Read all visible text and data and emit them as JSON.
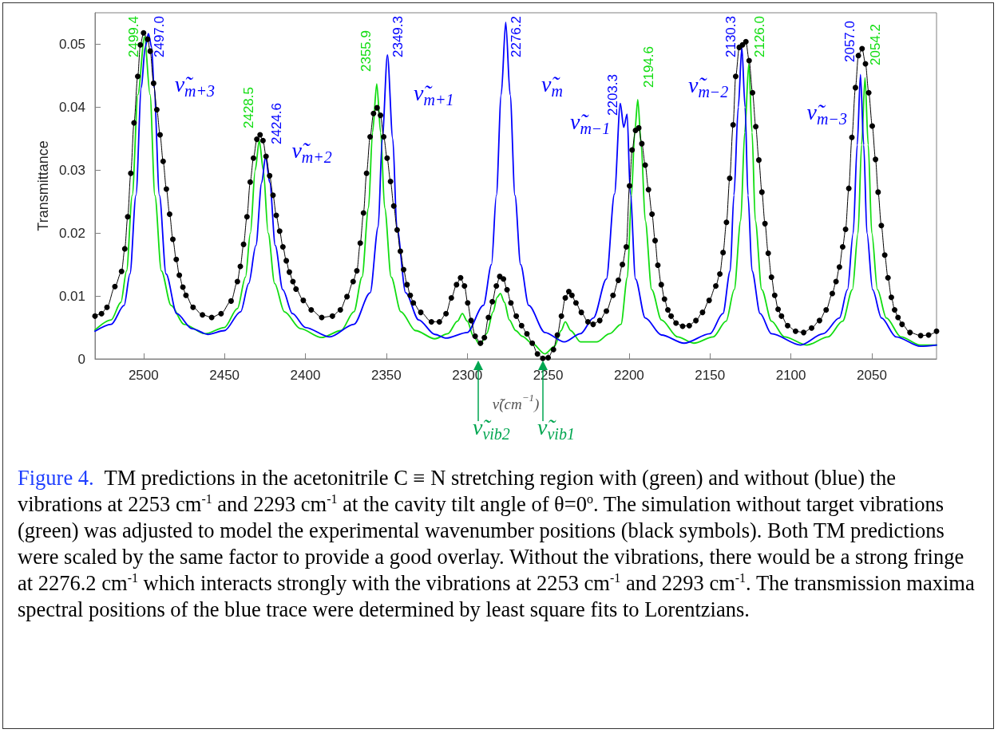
{
  "chart_data": {
    "type": "line",
    "title": "Figure 4.",
    "subtitle": "TM predictions in the acetonitrile C ≡ N stretching region with (green) and without (blue) the vibrations at 2253 cm$^{-1}$ and 2293 cm$^{-1}$ at the cavity tilt angle of θ=0$^{o}$.  The simulation without target vibrations (green) was adjusted to model the experimental wavenumber positions (black symbols).  Both TM predictions were scaled by the same factor to provide a good overlay.  Without the vibrations, there would be a strong fringe at 2276.2 cm$^{-1}$ which interacts strongly with the vibrations at 2253 cm$^{-1}$ and 2293 cm$^{-1}$.  The transmission maxima spectral positions of the blue trace were determined by least square fits to Lorentzians.",
    "xlabel": "ν̃(cm$^{−1}$)",
    "ylabel": "Transmittance",
    "xlim": [
      2530,
      2010
    ],
    "xticks": [
      2500,
      2450,
      2400,
      2350,
      2300,
      2250,
      2200,
      2150,
      2100,
      2050
    ],
    "ylim": [
      0,
      0.055
    ],
    "yticks": [
      0,
      0.01,
      0.02,
      0.03,
      0.04,
      0.05
    ],
    "series": [
      {
        "color": "#000000",
        "marker": "circle",
        "x": [
          2530,
          2526,
          2522.6,
          2517.7,
          2513.6,
          2511.6,
          2509.8,
          2507.9,
          2505.9,
          2503.6,
          2502,
          2500,
          2497.5,
          2495.9,
          2493.8,
          2491.8,
          2489.8,
          2487.9,
          2485.9,
          2483.9,
          2481.9,
          2479.8,
          2477.9,
          2475.7,
          2473.8,
          2469.4,
          2463.6,
          2457.9,
          2452.1,
          2445.9,
          2442,
          2440.2,
          2438.2,
          2436.1,
          2434.1,
          2432.1,
          2430,
          2428,
          2426.2,
          2424.3,
          2422.1,
          2420,
          2418,
          2415.9,
          2413.9,
          2411.8,
          2409.9,
          2407.7,
          2405.8,
          2401.3,
          2396.4,
          2389.9,
          2383.3,
          2378.4,
          2374.3,
          2370.5,
          2368.2,
          2366.1,
          2364.1,
          2362.2,
          2360,
          2357.9,
          2355.7,
          2353.6,
          2351.6,
          2349.5,
          2347.4,
          2345.4,
          2343.3,
          2341.3,
          2339.3,
          2337.2,
          2335.2,
          2333.3,
          2328.7,
          2322.1,
          2317.2,
          2313.1,
          2309.8,
          2306.6,
          2304.1,
          2301.7,
          2299.7,
          2297.6,
          2295.1,
          2291.8,
          2289.4,
          2286.9,
          2284.5,
          2282,
          2279.9,
          2277.6,
          2275.4,
          2273,
          2269.7,
          2266.4,
          2263.1,
          2259.8,
          2256.6,
          2253.3,
          2250,
          2246.7,
          2244.3,
          2241.8,
          2239.4,
          2237.2,
          2235.3,
          2232.8,
          2229.5,
          2225.4,
          2222.2,
          2218.1,
          2214,
          2209.9,
          2206.6,
          2204.1,
          2201.7,
          2199.7,
          2198.1,
          2196,
          2194,
          2192.1,
          2190,
          2188,
          2185.8,
          2183.9,
          2182.2,
          2180.1,
          2178.1,
          2176,
          2174,
          2171,
          2166.9,
          2162.8,
          2158.7,
          2154.6,
          2150.5,
          2146.4,
          2143.9,
          2141.9,
          2139.8,
          2137.8,
          2135.7,
          2134.1,
          2131.9,
          2129.9,
          2127.8,
          2125.8,
          2123.7,
          2121.7,
          2119.8,
          2117.9,
          2116,
          2114,
          2112,
          2110,
          2107.9,
          2105.8,
          2102,
          2097.1,
          2092.1,
          2087.2,
          2082.3,
          2078.2,
          2074.4,
          2072.1,
          2070,
          2068,
          2066.2,
          2064.2,
          2062.3,
          2060.1,
          2058.3,
          2056,
          2053.9,
          2051.9,
          2049.7,
          2047.7,
          2046.1,
          2044.1,
          2042,
          2040,
          2037.9,
          2035.9,
          2033.8,
          2031.3,
          2026.4,
          2019.8,
          2014.9,
          2010
        ],
        "values": [
          0.0068,
          0.0072,
          0.0082,
          0.0115,
          0.0139,
          0.0175,
          0.0226,
          0.0295,
          0.0375,
          0.0449,
          0.0499,
          0.0518,
          0.0508,
          0.0489,
          0.0438,
          0.0396,
          0.0356,
          0.0314,
          0.027,
          0.023,
          0.019,
          0.0158,
          0.0133,
          0.0114,
          0.0101,
          0.0082,
          0.007,
          0.0066,
          0.0072,
          0.0092,
          0.0123,
          0.0147,
          0.0182,
          0.0226,
          0.0281,
          0.0319,
          0.0349,
          0.0356,
          0.0347,
          0.0322,
          0.0291,
          0.026,
          0.0228,
          0.0203,
          0.0178,
          0.0156,
          0.0138,
          0.0123,
          0.0111,
          0.0093,
          0.0078,
          0.0066,
          0.0068,
          0.0078,
          0.0099,
          0.0123,
          0.014,
          0.0184,
          0.0232,
          0.0295,
          0.0353,
          0.039,
          0.0399,
          0.0387,
          0.0353,
          0.0319,
          0.0282,
          0.0243,
          0.0205,
          0.0171,
          0.0142,
          0.0118,
          0.0101,
          0.0089,
          0.0074,
          0.0059,
          0.0059,
          0.0072,
          0.0097,
          0.0118,
          0.0129,
          0.0116,
          0.0089,
          0.0061,
          0.0036,
          0.0025,
          0.0034,
          0.0066,
          0.0091,
          0.0116,
          0.0131,
          0.0127,
          0.011,
          0.0089,
          0.0068,
          0.0053,
          0.004,
          0.0025,
          0.0008,
          0.0001,
          0.0002,
          0.0015,
          0.0038,
          0.0068,
          0.0097,
          0.0107,
          0.0101,
          0.0089,
          0.0074,
          0.0059,
          0.0055,
          0.0061,
          0.0076,
          0.0101,
          0.0125,
          0.015,
          0.0178,
          0.0275,
          0.0332,
          0.0363,
          0.0367,
          0.0342,
          0.0308,
          0.0269,
          0.023,
          0.0188,
          0.0149,
          0.0118,
          0.0095,
          0.0078,
          0.0068,
          0.0057,
          0.0052,
          0.0053,
          0.0061,
          0.0074,
          0.0093,
          0.0116,
          0.0135,
          0.0169,
          0.0217,
          0.0287,
          0.0372,
          0.0449,
          0.0495,
          0.0499,
          0.0504,
          0.0474,
          0.0423,
          0.0369,
          0.0316,
          0.0265,
          0.0215,
          0.0168,
          0.013,
          0.0101,
          0.0079,
          0.0068,
          0.0053,
          0.0044,
          0.0042,
          0.0049,
          0.0061,
          0.0078,
          0.0104,
          0.0123,
          0.0146,
          0.0178,
          0.0206,
          0.0271,
          0.0352,
          0.0431,
          0.0482,
          0.0493,
          0.0469,
          0.0423,
          0.037,
          0.0317,
          0.0265,
          0.0212,
          0.0165,
          0.0129,
          0.0098,
          0.0078,
          0.0066,
          0.0055,
          0.0042,
          0.0037,
          0.0038,
          0.0044
        ]
      },
      {
        "color": "#11dd11",
        "marker": "none",
        "x": [
          2530,
          2520,
          2514,
          2510.5,
          2507,
          2503.5,
          2499.4,
          2496,
          2493,
          2489,
          2483,
          2475,
          2462,
          2450,
          2442,
          2437,
          2434,
          2431,
          2428.5,
          2426,
          2423,
          2419,
          2413,
          2403,
          2390,
          2378,
          2370,
          2365,
          2361,
          2358.5,
          2355.9,
          2353.5,
          2351,
          2347,
          2341,
          2332,
          2320,
          2312,
          2306,
          2303,
          2300,
          2296,
          2292,
          2288,
          2284,
          2281.5,
          2279.5,
          2277,
          2274,
          2270,
          2266,
          2260,
          2252,
          2246,
          2242,
          2239.4,
          2236,
          2230,
          2220,
          2212,
          2205,
          2201,
          2198.5,
          2196.5,
          2194.6,
          2192.5,
          2190,
          2186,
          2180,
          2170,
          2160,
          2148,
          2140,
          2135,
          2131,
          2128.5,
          2126,
          2124,
          2122,
          2118,
          2112,
          2104,
          2090,
          2077,
          2068,
          2062,
          2058.5,
          2056.3,
          2054.2,
          2052.2,
          2050,
          2046.5,
          2041,
          2032,
          2020,
          2010
        ],
        "values": [
          0.0046,
          0.0062,
          0.009,
          0.014,
          0.026,
          0.042,
          0.0512,
          0.042,
          0.026,
          0.014,
          0.0085,
          0.0055,
          0.004,
          0.005,
          0.008,
          0.013,
          0.02,
          0.03,
          0.0347,
          0.03,
          0.02,
          0.012,
          0.0075,
          0.0048,
          0.0034,
          0.0045,
          0.0075,
          0.013,
          0.024,
          0.036,
          0.0437,
          0.036,
          0.024,
          0.013,
          0.0075,
          0.0045,
          0.0032,
          0.004,
          0.006,
          0.0072,
          0.006,
          0.0035,
          0.0022,
          0.004,
          0.0075,
          0.0098,
          0.0104,
          0.009,
          0.0062,
          0.0045,
          0.0036,
          0.0025,
          0.0008,
          0.002,
          0.0045,
          0.0059,
          0.0045,
          0.0027,
          0.0027,
          0.004,
          0.0055,
          0.013,
          0.026,
          0.036,
          0.0412,
          0.034,
          0.022,
          0.011,
          0.0062,
          0.0035,
          0.0025,
          0.0035,
          0.006,
          0.011,
          0.022,
          0.036,
          0.0469,
          0.036,
          0.022,
          0.011,
          0.006,
          0.0035,
          0.0022,
          0.0035,
          0.006,
          0.011,
          0.02,
          0.034,
          0.0447,
          0.034,
          0.02,
          0.011,
          0.0065,
          0.0035,
          0.0022,
          0.0022
        ]
      },
      {
        "color": "#0000ff",
        "marker": "none",
        "x": [
          2530,
          2520,
          2512,
          2508.4,
          2504.7,
          2501.4,
          2499,
          2497,
          2495,
          2493.5,
          2490.2,
          2486.1,
          2479.5,
          2470,
          2460.3,
          2450,
          2440,
          2435,
          2430.6,
          2427,
          2424.6,
          2422,
          2418.6,
          2414,
          2408,
          2400,
          2385,
          2370,
          2360,
          2355,
          2352.5,
          2349.3,
          2346,
          2343.5,
          2338,
          2330,
          2320,
          2313,
          2300,
          2290,
          2285,
          2282,
          2279,
          2276.2,
          2273.5,
          2270.5,
          2267,
          2262,
          2252,
          2240,
          2230,
          2222,
          2214,
          2209,
          2205.4,
          2203.3,
          2201.2,
          2199.2,
          2196,
          2190,
          2180,
          2166,
          2150,
          2142,
          2137.5,
          2135.2,
          2132.5,
          2130.3,
          2128.3,
          2126.5,
          2124,
          2119,
          2112,
          2094,
          2080,
          2070,
          2065,
          2061.5,
          2059,
          2057,
          2055,
          2053,
          2049.5,
          2044,
          2035,
          2020,
          2010
        ],
        "values": [
          0.0044,
          0.0055,
          0.0085,
          0.0135,
          0.026,
          0.0431,
          0.0495,
          0.0517,
          0.0495,
          0.0431,
          0.026,
          0.0135,
          0.0072,
          0.0048,
          0.0039,
          0.0045,
          0.0075,
          0.012,
          0.018,
          0.028,
          0.0322,
          0.028,
          0.018,
          0.011,
          0.0072,
          0.005,
          0.0035,
          0.0055,
          0.0105,
          0.021,
          0.035,
          0.0483,
          0.035,
          0.021,
          0.0105,
          0.0062,
          0.0039,
          0.0033,
          0.0042,
          0.0085,
          0.015,
          0.026,
          0.042,
          0.0535,
          0.042,
          0.026,
          0.015,
          0.0085,
          0.0042,
          0.0027,
          0.004,
          0.0065,
          0.0127,
          0.0262,
          0.0406,
          0.0368,
          0.0389,
          0.0262,
          0.0127,
          0.0065,
          0.0038,
          0.0025,
          0.004,
          0.0072,
          0.014,
          0.026,
          0.04,
          0.0495,
          0.04,
          0.026,
          0.014,
          0.0072,
          0.004,
          0.0022,
          0.004,
          0.0065,
          0.011,
          0.02,
          0.034,
          0.0452,
          0.034,
          0.02,
          0.011,
          0.0065,
          0.0035,
          0.002,
          0.0022
        ]
      }
    ],
    "annotations": [
      {
        "text": "2499.4",
        "x": 2499.4,
        "y": 0.0512
      },
      {
        "text": "2497.0",
        "x": 2497,
        "y": 0.0517
      },
      {
        "text": "ν̃$_{m+3}$",
        "x": 2497,
        "y": 0.0517
      },
      {
        "text": "2428.5",
        "x": 2428.5,
        "y": 0.0347
      },
      {
        "text": "2424.6",
        "x": 2424.6,
        "y": 0.0322
      },
      {
        "text": "ν̃$_{m+2}$",
        "x": 2424.6,
        "y": 0.0322
      },
      {
        "text": "2355.9",
        "x": 2355.9,
        "y": 0.0437
      },
      {
        "text": "2349.3",
        "x": 2349.3,
        "y": 0.0483
      },
      {
        "text": "ν̃$_{m+1}$",
        "x": 2349.3,
        "y": 0.0483
      },
      {
        "text": "2276.2",
        "x": 2276.2,
        "y": 0.0535
      },
      {
        "text": "ν̃$_{m}$",
        "x": 2276.2,
        "y": 0.0535
      },
      {
        "text": "2203.3",
        "x": 2203.3,
        "y": 0.0368
      },
      {
        "text": "ν̃$_{m−1}$",
        "x": 2203.3,
        "y": 0.0368
      },
      {
        "text": "2194.6",
        "x": 2194.6,
        "y": 0.0412
      },
      {
        "text": "2130.3",
        "x": 2130.3,
        "y": 0.0495
      },
      {
        "text": "ν̃$_{m−2}$",
        "x": 2130.3,
        "y": 0.0495
      },
      {
        "text": "2126.0",
        "x": 2126,
        "y": 0.0469
      },
      {
        "text": "2057.0",
        "x": 2057,
        "y": 0.0452
      },
      {
        "text": "ν̃$_{m−3}$",
        "x": 2057,
        "y": 0.0452
      },
      {
        "text": "2054.2",
        "x": 2054.2,
        "y": 0.0447
      }
    ],
    "ref_lines": [
      {
        "axis": "x",
        "value": 2293,
        "label": "ν̃$_{vib2}$",
        "color": "#00a650"
      },
      {
        "axis": "x",
        "value": 2253,
        "label": "ν̃$_{vib1}$",
        "color": "#00a650"
      }
    ]
  }
}
